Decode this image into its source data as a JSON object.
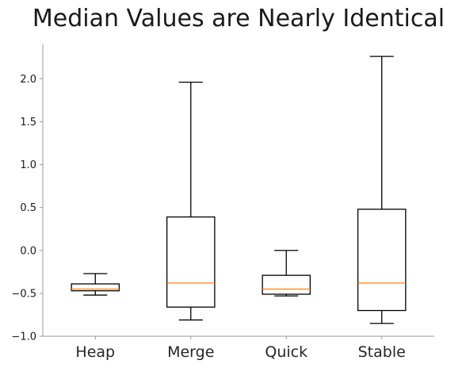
{
  "chart_data": {
    "type": "box",
    "title": "Median Values are Nearly Identical",
    "xlabel": "",
    "ylabel": "",
    "ylim": [
      -1.0,
      2.4
    ],
    "yticks": [
      -1.0,
      -0.5,
      0.0,
      0.5,
      1.0,
      1.5,
      2.0
    ],
    "ytick_labels": [
      "−1.0",
      "−0.5",
      "0.0",
      "0.5",
      "1.0",
      "1.5",
      "2.0"
    ],
    "grid": false,
    "median_color": "#ff7f0e",
    "box_color": "#000000",
    "categories": [
      "Heap",
      "Merge",
      "Quick",
      "Stable"
    ],
    "boxes": [
      {
        "name": "Heap",
        "whislo": -0.52,
        "q1": -0.47,
        "med": -0.45,
        "q3": -0.39,
        "whishi": -0.27
      },
      {
        "name": "Merge",
        "whislo": -0.81,
        "q1": -0.66,
        "med": -0.38,
        "q3": 0.39,
        "whishi": 1.96
      },
      {
        "name": "Quick",
        "whislo": -0.53,
        "q1": -0.51,
        "med": -0.45,
        "q3": -0.29,
        "whishi": 0.0
      },
      {
        "name": "Stable",
        "whislo": -0.85,
        "q1": -0.7,
        "med": -0.38,
        "q3": 0.48,
        "whishi": 2.26
      }
    ]
  }
}
